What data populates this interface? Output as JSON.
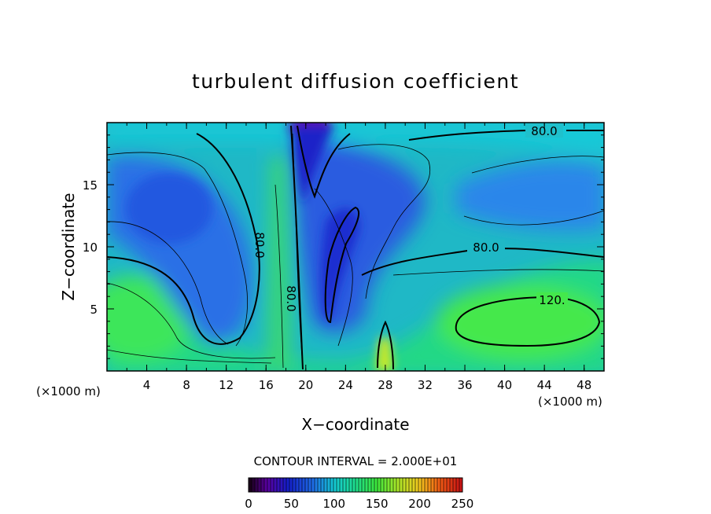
{
  "chart_data": {
    "type": "heatmap",
    "title": "turbulent diffusion coefficient",
    "xlabel": "X−coordinate",
    "ylabel": "Z−coordinate",
    "x_unit_left": "(×1000 m)",
    "x_unit_right": "(×1000 m)",
    "xlim": [
      0,
      50
    ],
    "ylim": [
      0,
      20
    ],
    "x_ticks": [
      4,
      8,
      12,
      16,
      20,
      24,
      28,
      32,
      36,
      40,
      44,
      48
    ],
    "y_ticks": [
      5,
      10,
      15
    ],
    "contour_interval_text": "CONTOUR INTERVAL = 2.000E+01",
    "contour_labels": [
      "80.0",
      "80.0",
      "80.0",
      "80.0",
      "120."
    ],
    "colorbar": {
      "range": [
        0,
        250
      ],
      "ticks": [
        0,
        50,
        100,
        150,
        200,
        250
      ]
    }
  }
}
